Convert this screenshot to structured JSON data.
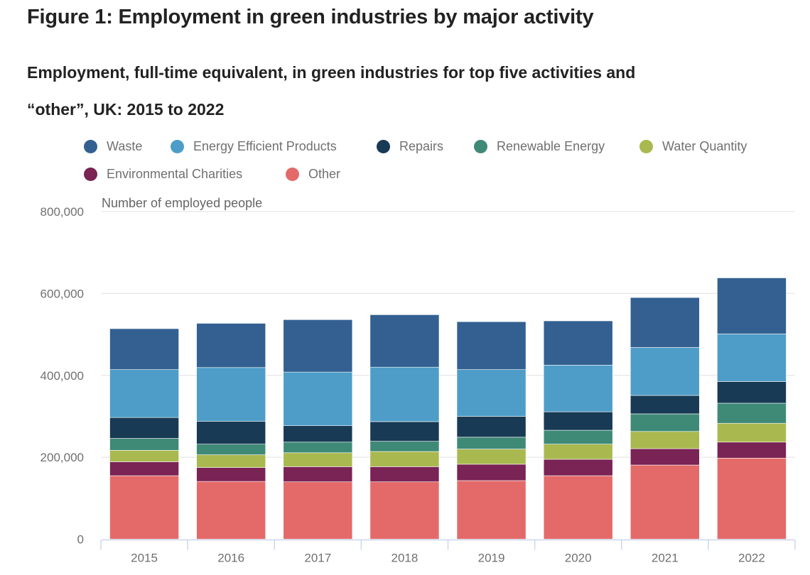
{
  "header": {
    "title": "Figure 1: Employment in green industries by major activity",
    "subtitle": "Employment, full-time equivalent, in green industries for top five activities and “other”, UK: 2015 to 2022"
  },
  "chart_data": {
    "type": "bar",
    "stacked": true,
    "title": "Figure 1: Employment in green industries by major activity",
    "subtitle": "Employment, full-time equivalent, in green industries for top five activities and “other”, UK: 2015 to 2022",
    "xlabel": "",
    "ylabel": "Number of employed people",
    "ylim": [
      0,
      800000
    ],
    "yticks": [
      0,
      200000,
      400000,
      600000,
      800000
    ],
    "ytick_labels": [
      "0",
      "200,000",
      "400,000",
      "600,000",
      "800,000"
    ],
    "grid": true,
    "legend_position": "top-left",
    "categories": [
      "2015",
      "2016",
      "2017",
      "2018",
      "2019",
      "2020",
      "2021",
      "2022"
    ],
    "series": [
      {
        "name": "Other",
        "color": "#e46a6a",
        "values": [
          155000,
          141000,
          140000,
          140000,
          143000,
          155000,
          181000,
          198000
        ]
      },
      {
        "name": "Environmental Charities",
        "color": "#7a2355",
        "values": [
          34000,
          34000,
          37000,
          37000,
          40000,
          40000,
          40000,
          39000
        ]
      },
      {
        "name": "Water Quantity",
        "color": "#a9b94f",
        "values": [
          28000,
          31000,
          34000,
          37000,
          37000,
          37000,
          42000,
          46000
        ]
      },
      {
        "name": "Renewable Energy",
        "color": "#3f8a77",
        "values": [
          29000,
          26000,
          26000,
          25000,
          29000,
          34000,
          43000,
          49000
        ]
      },
      {
        "name": "Repairs",
        "color": "#183a54",
        "values": [
          51000,
          56000,
          40000,
          48000,
          51000,
          45000,
          45000,
          53000
        ]
      },
      {
        "name": "Energy Efficient Products",
        "color": "#4e9dc8",
        "values": [
          117000,
          131000,
          131000,
          133000,
          114000,
          114000,
          117000,
          116000
        ]
      },
      {
        "name": "Waste",
        "color": "#336091",
        "values": [
          100000,
          108000,
          128000,
          128000,
          117000,
          108000,
          122000,
          137000
        ]
      }
    ]
  },
  "legend": {
    "items": [
      {
        "label": "Waste",
        "color": "#336091"
      },
      {
        "label": "Energy Efficient Products",
        "color": "#4e9dc8"
      },
      {
        "label": "Repairs",
        "color": "#183a54"
      },
      {
        "label": "Renewable Energy",
        "color": "#3f8a77"
      },
      {
        "label": "Water Quantity",
        "color": "#a9b94f"
      },
      {
        "label": "Environmental Charities",
        "color": "#7a2355"
      },
      {
        "label": "Other",
        "color": "#e46a6a"
      }
    ]
  },
  "colors": {
    "gridline": "#e6e6e6",
    "axis": "#ccd6eb",
    "tick_text": "#707070"
  }
}
